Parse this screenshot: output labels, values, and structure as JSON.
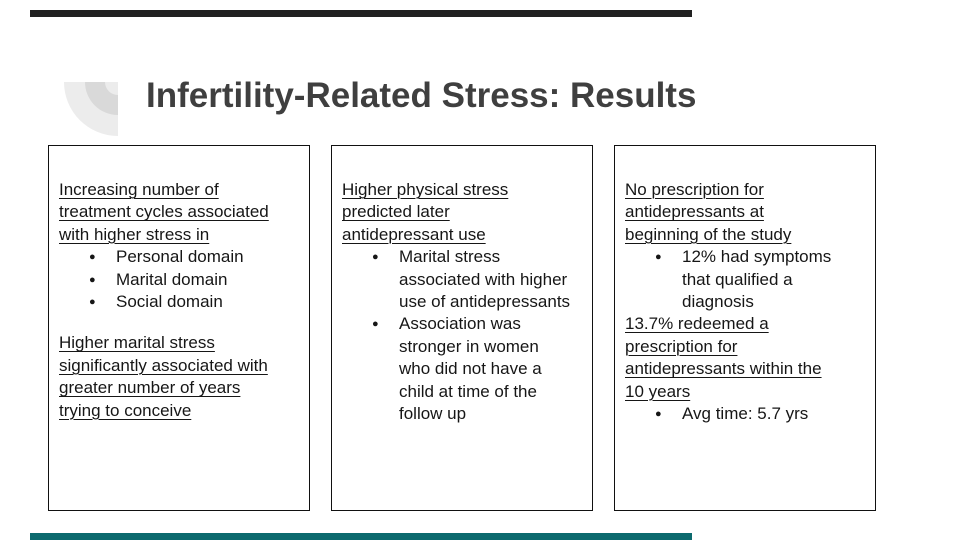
{
  "slide": {
    "title": "Infertility-Related Stress: Results",
    "theme": {
      "top_bar_color": "#212121",
      "bottom_bar_color": "#0c6a6e",
      "title_color": "#3f3f3f",
      "fan_outer_color": "#ececec",
      "fan_ring_color": "#d9d9d9",
      "fan_inner_color": "#ececec"
    },
    "boxes": [
      {
        "heading": "Increasing number of\ntreatment cycles associated\nwith higher stress in",
        "bullets": [
          "Personal domain",
          "Marital domain",
          "Social domain"
        ],
        "subheading": "Higher marital stress\nsignificantly associated with\ngreater number of years\ntrying to conceive"
      },
      {
        "heading": "Higher physical stress\npredicted later\nantidepressant use",
        "bullets": [
          "Marital stress\nassociated with higher\nuse of antidepressants",
          "Association was\nstronger in women\nwho did not have a\nchild at time of the\nfollow up"
        ]
      },
      {
        "heading": "No prescription for\nantidepressants at\nbeginning of the study",
        "bullets": [
          "12% had symptoms\nthat qualified a\ndiagnosis"
        ],
        "subheading": "13.7% redeemed a\nprescription for\nantidepressants within the\n10 years",
        "bullets2": [
          "Avg time: 5.7 yrs"
        ]
      }
    ]
  }
}
